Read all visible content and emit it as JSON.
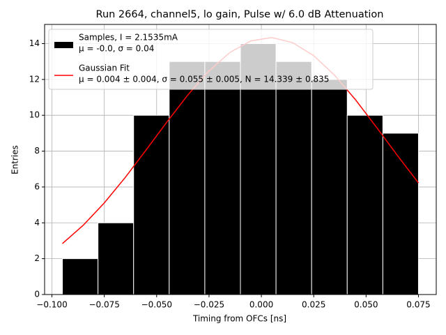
{
  "chart_data": {
    "type": "histogram",
    "title": "Run 2664, channel5, lo gain, Pulse w/ 6.0 dB Attenuation",
    "x_label": "Timing from OFCs [ns]",
    "y_label": "Entries",
    "bins": [
      -0.095,
      -0.078,
      -0.061,
      -0.044,
      -0.027,
      -0.01,
      0.007,
      0.024,
      0.041,
      0.058,
      0.075
    ],
    "series": [
      {
        "name": [
          "Samples, I = 2.1535mA",
          "μ = -0.0, σ = 0.04"
        ],
        "color": "#000000",
        "values": [
          2,
          4,
          10,
          13,
          13,
          14,
          13,
          12,
          10,
          9
        ]
      },
      {
        "type": "line",
        "name": [
          "Gaussian Fit",
          "μ = 0.004 ± 0.004, σ = 0.055 ± 0.005, N = 14.339 ± 0.835"
        ],
        "color": "#ff0000",
        "x": [
          -0.095,
          -0.085,
          -0.075,
          -0.065,
          -0.055,
          -0.045,
          -0.035,
          -0.025,
          -0.015,
          -0.005,
          0.005,
          0.015,
          0.025,
          0.035,
          0.045,
          0.055,
          0.065,
          0.075
        ],
        "values": [
          2.84,
          3.87,
          5.11,
          6.53,
          8.07,
          9.64,
          11.15,
          12.48,
          13.51,
          14.15,
          14.34,
          14.05,
          13.33,
          12.23,
          10.86,
          9.33,
          7.75,
          6.23
        ]
      }
    ],
    "xlim": [
      -0.1035,
      0.0835
    ],
    "ylim": [
      0,
      15.07
    ],
    "xticks": [
      {
        "value": -0.1,
        "label": "−0.100"
      },
      {
        "value": -0.075,
        "label": "−0.075"
      },
      {
        "value": -0.05,
        "label": "−0.050"
      },
      {
        "value": -0.025,
        "label": "−0.025"
      },
      {
        "value": 0,
        "label": "0.000"
      },
      {
        "value": 0.025,
        "label": "0.025"
      },
      {
        "value": 0.05,
        "label": "0.050"
      },
      {
        "value": 0.075,
        "label": "0.075"
      }
    ],
    "yticks": [
      0,
      2,
      4,
      6,
      8,
      10,
      12,
      14
    ],
    "grid": true,
    "legend": "upper left"
  }
}
